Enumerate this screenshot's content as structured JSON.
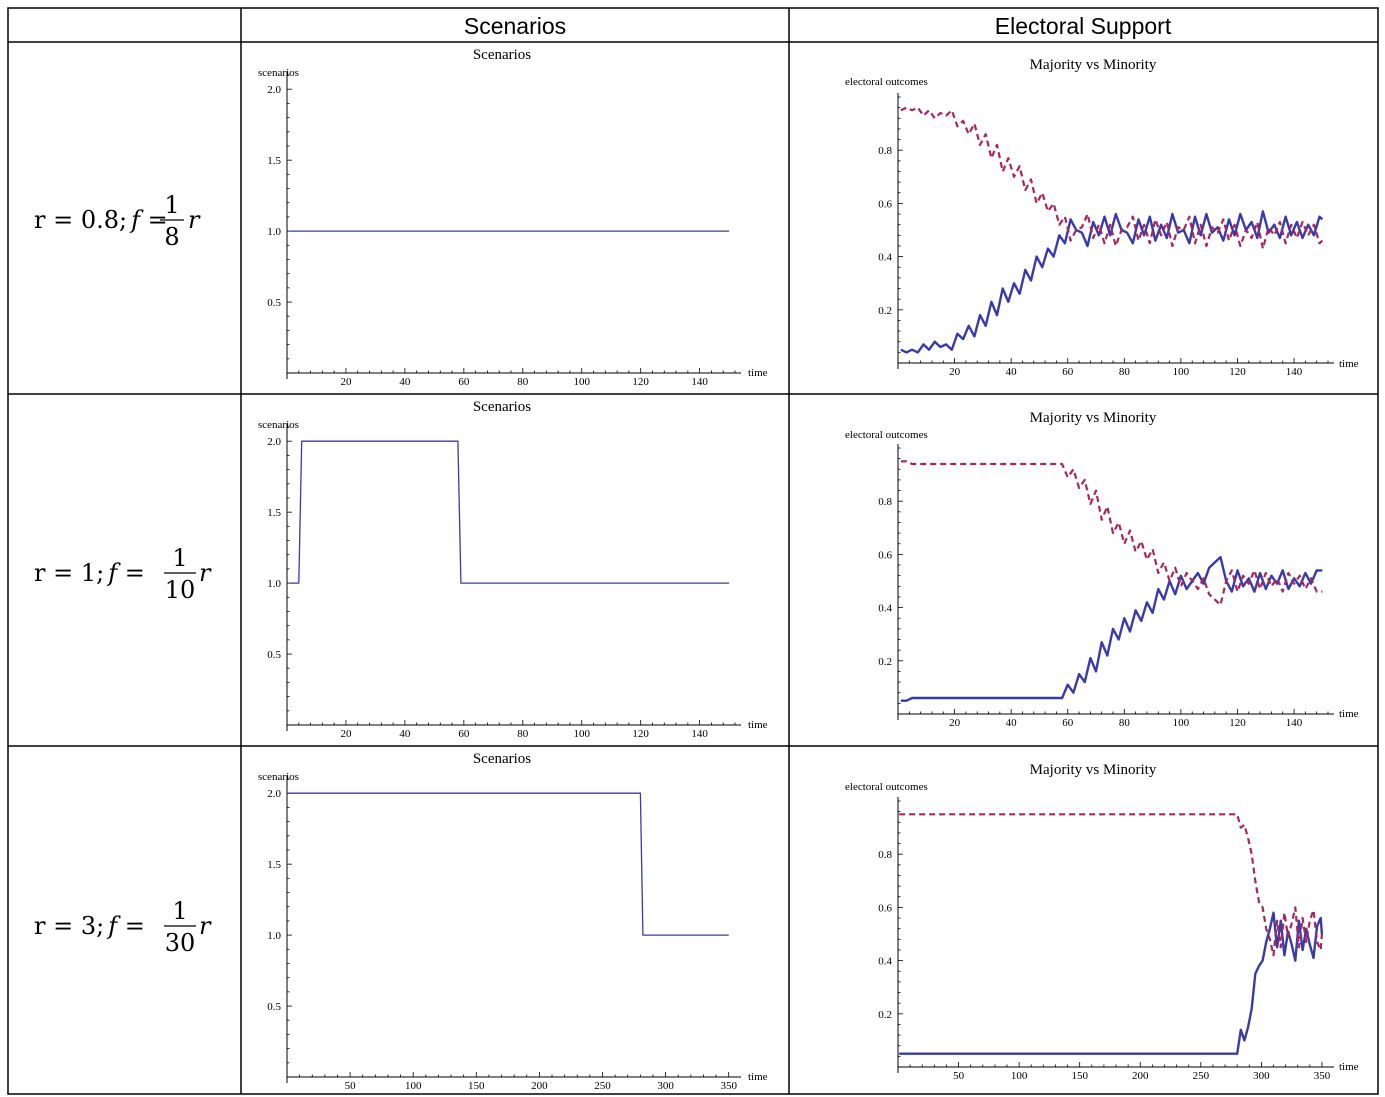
{
  "table": {
    "headers": [
      "",
      "Scenarios",
      "Electoral Support"
    ],
    "rows": [
      {
        "label": {
          "r": "r = 0.8;",
          "f": "f",
          "eq": " = ",
          "num": "1",
          "den": "8",
          "tail": "r"
        }
      },
      {
        "label": {
          "r": "r = 1;",
          "f": "f",
          "eq": " = ",
          "num": "1",
          "den": "10",
          "tail": "r"
        }
      },
      {
        "label": {
          "r": "r = 3;",
          "f": "f",
          "eq": " = ",
          "num": "1",
          "den": "30",
          "tail": "r"
        }
      }
    ]
  },
  "colors": {
    "scenario_line": "#3a3aa8",
    "minority_line": "#3a3aa8",
    "majority_line": "#a3285f"
  },
  "chart_data": [
    {
      "type": "line",
      "title": "Scenarios",
      "ylabel": "scenarios",
      "xlabel": "time",
      "xlim": [
        0,
        152
      ],
      "ylim": [
        0,
        2.1
      ],
      "xticks": [
        20,
        40,
        60,
        80,
        100,
        120,
        140
      ],
      "yticks": [
        0.5,
        1.0,
        1.5,
        2.0
      ],
      "ytick_labels": [
        "0.5",
        "1.0",
        "1.5",
        "2.0"
      ],
      "series": [
        {
          "x": [
            1,
            150
          ],
          "y": [
            1,
            1
          ]
        }
      ]
    },
    {
      "type": "line",
      "title": "Majority vs Minority",
      "ylabel": "electoral  outcomes",
      "xlabel": "time",
      "xlim": [
        0,
        152
      ],
      "ylim": [
        0,
        1.0
      ],
      "xticks": [
        20,
        40,
        60,
        80,
        100,
        120,
        140
      ],
      "yticks": [
        0.2,
        0.4,
        0.6,
        0.8
      ],
      "ytick_labels": [
        "0.2",
        "0.4",
        "0.6",
        "0.8"
      ],
      "series": [
        {
          "style": "solid",
          "x": [
            1,
            3,
            5,
            7,
            9,
            11,
            13,
            15,
            17,
            19,
            21,
            23,
            25,
            27,
            29,
            31,
            33,
            35,
            37,
            39,
            41,
            43,
            45,
            47,
            49,
            51,
            53,
            55,
            57,
            59,
            61,
            63,
            65,
            67,
            69,
            71,
            73,
            75,
            77,
            79,
            81,
            83,
            85,
            87,
            89,
            91,
            93,
            95,
            97,
            99,
            101,
            103,
            105,
            107,
            109,
            111,
            113,
            115,
            117,
            119,
            121,
            123,
            125,
            127,
            129,
            131,
            133,
            135,
            137,
            139,
            141,
            143,
            145,
            147,
            149,
            150
          ],
          "y": [
            0.05,
            0.04,
            0.05,
            0.04,
            0.07,
            0.05,
            0.08,
            0.06,
            0.07,
            0.05,
            0.11,
            0.09,
            0.14,
            0.1,
            0.18,
            0.14,
            0.23,
            0.18,
            0.28,
            0.23,
            0.3,
            0.26,
            0.35,
            0.31,
            0.4,
            0.36,
            0.43,
            0.4,
            0.48,
            0.45,
            0.54,
            0.5,
            0.49,
            0.44,
            0.53,
            0.48,
            0.55,
            0.48,
            0.56,
            0.5,
            0.49,
            0.45,
            0.54,
            0.48,
            0.55,
            0.46,
            0.52,
            0.47,
            0.56,
            0.49,
            0.5,
            0.45,
            0.55,
            0.48,
            0.56,
            0.49,
            0.51,
            0.46,
            0.54,
            0.48,
            0.56,
            0.5,
            0.53,
            0.47,
            0.57,
            0.49,
            0.52,
            0.47,
            0.55,
            0.48,
            0.53,
            0.47,
            0.52,
            0.48,
            0.55,
            0.54
          ]
        },
        {
          "style": "dashed",
          "x": [
            1,
            3,
            5,
            7,
            9,
            11,
            13,
            15,
            17,
            19,
            21,
            23,
            25,
            27,
            29,
            31,
            33,
            35,
            37,
            39,
            41,
            43,
            45,
            47,
            49,
            51,
            53,
            55,
            57,
            59,
            61,
            63,
            65,
            67,
            69,
            71,
            73,
            75,
            77,
            79,
            81,
            83,
            85,
            87,
            89,
            91,
            93,
            95,
            97,
            99,
            101,
            103,
            105,
            107,
            109,
            111,
            113,
            115,
            117,
            119,
            121,
            123,
            125,
            127,
            129,
            131,
            133,
            135,
            137,
            139,
            141,
            143,
            145,
            147,
            149,
            150
          ],
          "y": [
            0.95,
            0.96,
            0.95,
            0.96,
            0.93,
            0.95,
            0.92,
            0.94,
            0.93,
            0.95,
            0.89,
            0.91,
            0.86,
            0.9,
            0.82,
            0.86,
            0.77,
            0.82,
            0.72,
            0.77,
            0.7,
            0.74,
            0.65,
            0.69,
            0.6,
            0.64,
            0.57,
            0.6,
            0.52,
            0.55,
            0.46,
            0.5,
            0.51,
            0.56,
            0.47,
            0.52,
            0.45,
            0.52,
            0.44,
            0.5,
            0.51,
            0.55,
            0.46,
            0.52,
            0.45,
            0.54,
            0.48,
            0.53,
            0.44,
            0.51,
            0.5,
            0.55,
            0.45,
            0.52,
            0.44,
            0.51,
            0.49,
            0.54,
            0.46,
            0.52,
            0.44,
            0.5,
            0.47,
            0.53,
            0.43,
            0.51,
            0.48,
            0.53,
            0.45,
            0.52,
            0.47,
            0.53,
            0.48,
            0.52,
            0.45,
            0.46
          ]
        }
      ]
    },
    {
      "type": "line",
      "title": "Scenarios",
      "ylabel": "scenarios",
      "xlabel": "time",
      "xlim": [
        0,
        152
      ],
      "ylim": [
        0,
        2.1
      ],
      "xticks": [
        20,
        40,
        60,
        80,
        100,
        120,
        140
      ],
      "yticks": [
        0.5,
        1.0,
        1.5,
        2.0
      ],
      "ytick_labels": [
        "0.5",
        "1.0",
        "1.5",
        "2.0"
      ],
      "series": [
        {
          "x": [
            1,
            4,
            5,
            58,
            59,
            150
          ],
          "y": [
            1,
            1,
            2,
            2,
            1,
            1
          ]
        }
      ]
    },
    {
      "type": "line",
      "title": "Majority vs Minority",
      "ylabel": "electoral  outcomes",
      "xlabel": "time",
      "xlim": [
        0,
        152
      ],
      "ylim": [
        0,
        1.0
      ],
      "xticks": [
        20,
        40,
        60,
        80,
        100,
        120,
        140
      ],
      "yticks": [
        0.2,
        0.4,
        0.6,
        0.8
      ],
      "ytick_labels": [
        "0.2",
        "0.4",
        "0.6",
        "0.8"
      ],
      "series": [
        {
          "style": "solid",
          "x": [
            1,
            3,
            5,
            58,
            60,
            62,
            64,
            66,
            68,
            70,
            72,
            74,
            76,
            78,
            80,
            82,
            84,
            86,
            88,
            90,
            92,
            94,
            96,
            98,
            100,
            102,
            104,
            106,
            108,
            110,
            112,
            114,
            116,
            118,
            120,
            122,
            124,
            126,
            128,
            130,
            132,
            134,
            136,
            138,
            140,
            142,
            144,
            146,
            148,
            150
          ],
          "y": [
            0.05,
            0.05,
            0.06,
            0.06,
            0.11,
            0.08,
            0.15,
            0.12,
            0.21,
            0.16,
            0.27,
            0.22,
            0.32,
            0.28,
            0.36,
            0.31,
            0.39,
            0.35,
            0.42,
            0.38,
            0.47,
            0.43,
            0.5,
            0.45,
            0.52,
            0.47,
            0.5,
            0.53,
            0.49,
            0.55,
            0.57,
            0.59,
            0.5,
            0.46,
            0.54,
            0.48,
            0.51,
            0.46,
            0.53,
            0.47,
            0.52,
            0.49,
            0.54,
            0.47,
            0.51,
            0.48,
            0.53,
            0.49,
            0.54,
            0.54
          ]
        },
        {
          "style": "dashed",
          "x": [
            1,
            3,
            5,
            58,
            60,
            62,
            64,
            66,
            68,
            70,
            72,
            74,
            76,
            78,
            80,
            82,
            84,
            86,
            88,
            90,
            92,
            94,
            96,
            98,
            100,
            102,
            104,
            106,
            108,
            110,
            112,
            114,
            116,
            118,
            120,
            122,
            124,
            126,
            128,
            130,
            132,
            134,
            136,
            138,
            140,
            142,
            144,
            146,
            148,
            150
          ],
          "y": [
            0.95,
            0.95,
            0.94,
            0.94,
            0.89,
            0.92,
            0.85,
            0.88,
            0.79,
            0.84,
            0.73,
            0.78,
            0.68,
            0.72,
            0.64,
            0.69,
            0.61,
            0.65,
            0.58,
            0.62,
            0.53,
            0.57,
            0.5,
            0.55,
            0.48,
            0.53,
            0.5,
            0.47,
            0.51,
            0.45,
            0.43,
            0.41,
            0.5,
            0.54,
            0.46,
            0.52,
            0.49,
            0.54,
            0.47,
            0.53,
            0.48,
            0.51,
            0.46,
            0.53,
            0.49,
            0.52,
            0.47,
            0.51,
            0.46,
            0.46
          ]
        }
      ]
    },
    {
      "type": "line",
      "title": "Scenarios",
      "ylabel": "scenarios",
      "xlabel": "time",
      "xlim": [
        0,
        355
      ],
      "ylim": [
        0,
        2.1
      ],
      "xticks": [
        50,
        100,
        150,
        200,
        250,
        300,
        350
      ],
      "yticks": [
        0.5,
        1.0,
        1.5,
        2.0
      ],
      "ytick_labels": [
        "0.5",
        "1.0",
        "1.5",
        "2.0"
      ],
      "series": [
        {
          "x": [
            1,
            280,
            282,
            350
          ],
          "y": [
            2,
            2,
            1,
            1
          ]
        }
      ]
    },
    {
      "type": "line",
      "title": "Majority vs Minority",
      "ylabel": "electoral  outcomes",
      "xlabel": "time",
      "xlim": [
        0,
        355
      ],
      "ylim": [
        0,
        1.0
      ],
      "xticks": [
        50,
        100,
        150,
        200,
        250,
        300,
        350
      ],
      "yticks": [
        0.2,
        0.4,
        0.6,
        0.8
      ],
      "ytick_labels": [
        "0.2",
        "0.4",
        "0.6",
        "0.8"
      ],
      "series": [
        {
          "style": "solid",
          "x": [
            1,
            280,
            283,
            286,
            289,
            292,
            295,
            298,
            301,
            304,
            307,
            310,
            313,
            316,
            319,
            322,
            325,
            328,
            331,
            334,
            337,
            340,
            343,
            346,
            349,
            350
          ],
          "y": [
            0.05,
            0.05,
            0.14,
            0.1,
            0.15,
            0.22,
            0.35,
            0.38,
            0.4,
            0.47,
            0.52,
            0.58,
            0.45,
            0.55,
            0.42,
            0.51,
            0.46,
            0.4,
            0.55,
            0.44,
            0.52,
            0.46,
            0.41,
            0.53,
            0.56,
            0.5
          ]
        },
        {
          "style": "dashed",
          "x": [
            1,
            280,
            283,
            286,
            289,
            292,
            295,
            298,
            301,
            304,
            307,
            310,
            313,
            316,
            319,
            322,
            325,
            328,
            331,
            334,
            337,
            340,
            343,
            346,
            349,
            350
          ],
          "y": [
            0.95,
            0.95,
            0.9,
            0.91,
            0.86,
            0.8,
            0.7,
            0.62,
            0.6,
            0.52,
            0.48,
            0.42,
            0.55,
            0.45,
            0.58,
            0.49,
            0.54,
            0.6,
            0.45,
            0.56,
            0.47,
            0.55,
            0.59,
            0.47,
            0.44,
            0.5
          ]
        }
      ]
    }
  ]
}
